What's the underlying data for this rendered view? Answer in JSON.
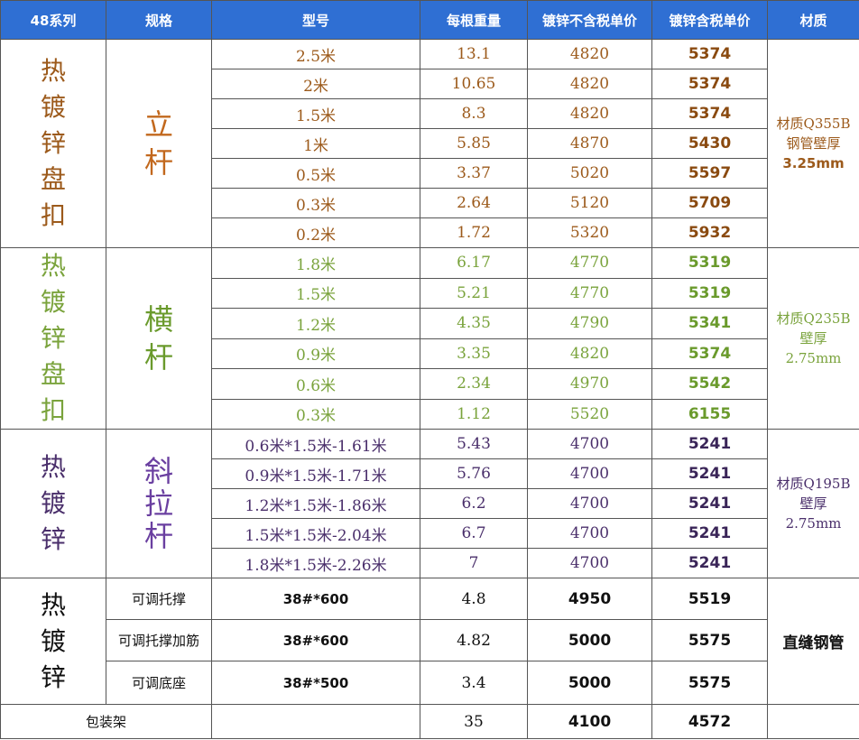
{
  "header": {
    "series": "48系列",
    "spec": "规格",
    "model": "型号",
    "weight": "每根重量",
    "price_ex_tax": "镀锌不含税单价",
    "price_in_tax": "镀锌含税单价",
    "material": "材质"
  },
  "group1": {
    "category": [
      "热",
      "镀",
      "锌",
      "盘",
      "扣"
    ],
    "name": [
      "立",
      "杆"
    ],
    "material_lines": [
      "材质Q355B",
      "钢管壁厚",
      "3.25mm"
    ],
    "rows": [
      {
        "model": "2.5米",
        "weight": "13.1",
        "ex": "4820",
        "inc": "5374"
      },
      {
        "model": "2米",
        "weight": "10.65",
        "ex": "4820",
        "inc": "5374"
      },
      {
        "model": "1.5米",
        "weight": "8.3",
        "ex": "4820",
        "inc": "5374"
      },
      {
        "model": "1米",
        "weight": "5.85",
        "ex": "4870",
        "inc": "5430"
      },
      {
        "model": "0.5米",
        "weight": "3.37",
        "ex": "5020",
        "inc": "5597"
      },
      {
        "model": "0.3米",
        "weight": "2.64",
        "ex": "5120",
        "inc": "5709"
      },
      {
        "model": "0.2米",
        "weight": "1.72",
        "ex": "5320",
        "inc": "5932"
      }
    ]
  },
  "group2": {
    "category": [
      "热",
      "镀",
      "锌",
      "盘",
      "扣"
    ],
    "name": [
      "横",
      "杆"
    ],
    "material_lines": [
      "材质Q235B",
      "壁厚",
      "2.75mm"
    ],
    "rows": [
      {
        "model": "1.8米",
        "weight": "6.17",
        "ex": "4770",
        "inc": "5319"
      },
      {
        "model": "1.5米",
        "weight": "5.21",
        "ex": "4770",
        "inc": "5319"
      },
      {
        "model": "1.2米",
        "weight": "4.35",
        "ex": "4790",
        "inc": "5341"
      },
      {
        "model": "0.9米",
        "weight": "3.35",
        "ex": "4820",
        "inc": "5374"
      },
      {
        "model": "0.6米",
        "weight": "2.34",
        "ex": "4970",
        "inc": "5542"
      },
      {
        "model": "0.3米",
        "weight": "1.12",
        "ex": "5520",
        "inc": "6155"
      }
    ]
  },
  "group3": {
    "category": [
      "热",
      "镀",
      "锌"
    ],
    "name": [
      "斜",
      "拉",
      "杆"
    ],
    "material_lines": [
      "材质Q195B",
      "壁厚",
      "2.75mm"
    ],
    "rows": [
      {
        "model": "0.6米*1.5米-1.61米",
        "weight": "5.43",
        "ex": "4700",
        "inc": "5241"
      },
      {
        "model": "0.9米*1.5米-1.71米",
        "weight": "5.76",
        "ex": "4700",
        "inc": "5241"
      },
      {
        "model": "1.2米*1.5米-1.86米",
        "weight": "6.2",
        "ex": "4700",
        "inc": "5241"
      },
      {
        "model": "1.5米*1.5米-2.04米",
        "weight": "6.7",
        "ex": "4700",
        "inc": "5241"
      },
      {
        "model": "1.8米*1.5米-2.26米",
        "weight": "7",
        "ex": "4700",
        "inc": "5241"
      }
    ]
  },
  "group4": {
    "category": [
      "热",
      "镀",
      "锌"
    ],
    "material": "直缝钢管",
    "rows": [
      {
        "spec": "可调托撑",
        "model": "38#*600",
        "weight": "4.8",
        "ex": "4950",
        "inc": "5519"
      },
      {
        "spec": "可调托撑加筋",
        "model": "38#*600",
        "weight": "4.82",
        "ex": "5000",
        "inc": "5575"
      },
      {
        "spec": "可调底座",
        "model": "38#*500",
        "weight": "3.4",
        "ex": "5000",
        "inc": "5575"
      }
    ]
  },
  "footer": {
    "label": "包装架",
    "weight": "35",
    "ex": "4100",
    "inc": "4572"
  }
}
